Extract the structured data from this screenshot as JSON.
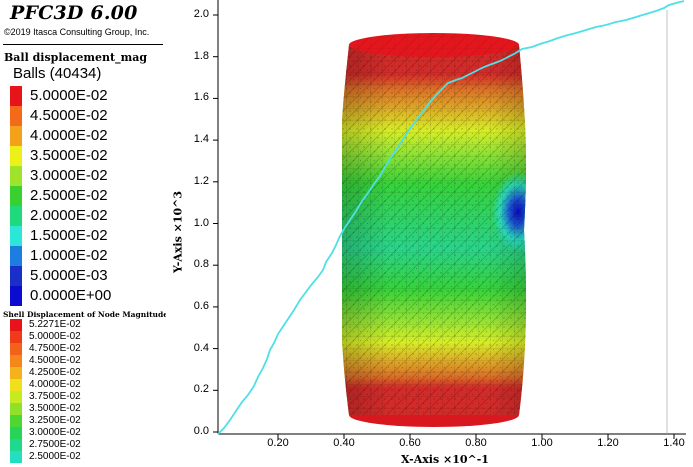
{
  "app": {
    "title": "PFC3D 6.00",
    "copyright": "©2019 Itasca Consulting Group, Inc."
  },
  "ball_legend": {
    "title": "Ball displacement_mag",
    "count_label": "Balls (40434)",
    "entries": [
      {
        "label": "5.0000E-02",
        "color": "#e8141c"
      },
      {
        "label": "4.5000E-02",
        "color": "#f26a1a"
      },
      {
        "label": "4.0000E-02",
        "color": "#f4a21b"
      },
      {
        "label": "3.5000E-02",
        "color": "#eef01a"
      },
      {
        "label": "3.0000E-02",
        "color": "#9fe32a"
      },
      {
        "label": "2.5000E-02",
        "color": "#39d12f"
      },
      {
        "label": "2.0000E-02",
        "color": "#1fd97c"
      },
      {
        "label": "1.5000E-02",
        "color": "#2ce6d8"
      },
      {
        "label": "1.0000E-02",
        "color": "#1e7de0"
      },
      {
        "label": "5.0000E-03",
        "color": "#1a2fc8"
      },
      {
        "label": "0.0000E+00",
        "color": "#0b0bd2"
      }
    ]
  },
  "shell_legend": {
    "title": "Shell Displacement of Node Magnitude",
    "entries": [
      {
        "label": "5.2271E-02",
        "color": "#e8141c"
      },
      {
        "label": "5.0000E-02",
        "color": "#ee3b1a"
      },
      {
        "label": "4.7500E-02",
        "color": "#f2621a"
      },
      {
        "label": "4.5000E-02",
        "color": "#f4861b"
      },
      {
        "label": "4.2500E-02",
        "color": "#f4b21b"
      },
      {
        "label": "4.0000E-02",
        "color": "#efe01c"
      },
      {
        "label": "3.7500E-02",
        "color": "#c8ea22"
      },
      {
        "label": "3.5000E-02",
        "color": "#8fe12b"
      },
      {
        "label": "3.2500E-02",
        "color": "#4ed631"
      },
      {
        "label": "3.0000E-02",
        "color": "#27d45a"
      },
      {
        "label": "2.7500E-02",
        "color": "#1fd98f"
      },
      {
        "label": "2.5000E-02",
        "color": "#22dfbf"
      }
    ]
  },
  "plot": {
    "x_axis_label": "X-Axis ×10^-1",
    "y_axis_label": "Y-Axis ×10^3",
    "x_ticks": [
      "0.20",
      "0.40",
      "0.60",
      "0.80",
      "1.00",
      "1.20",
      "1.40"
    ],
    "y_ticks": [
      "0.0",
      "0.2",
      "0.4",
      "0.6",
      "0.8",
      "1.0",
      "1.2",
      "1.4",
      "1.6",
      "1.8",
      "2.0"
    ],
    "curve_color": "#4ee0e6"
  }
}
